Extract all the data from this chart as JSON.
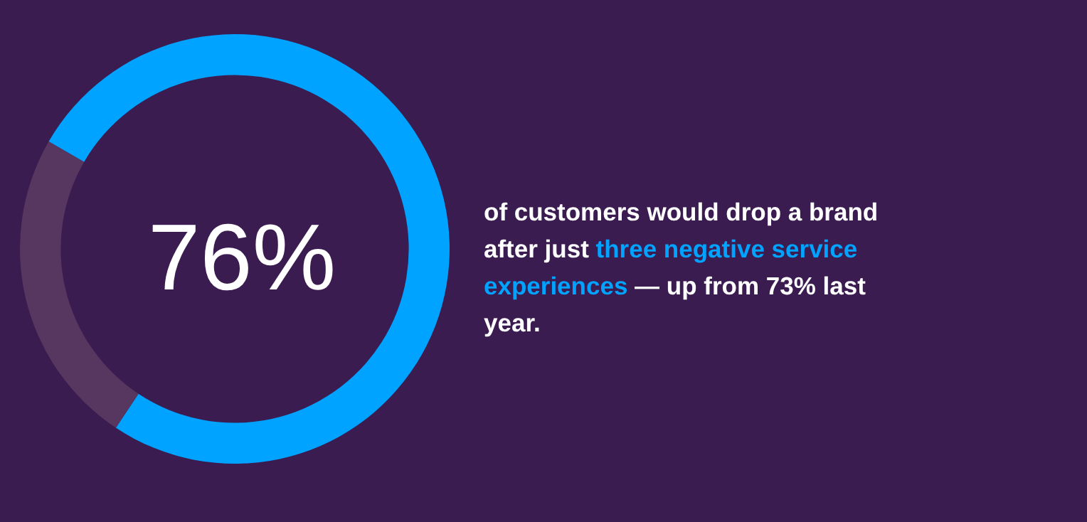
{
  "chart_data": {
    "type": "donut",
    "categories": [
      null,
      null
    ],
    "values": [
      76,
      24
    ],
    "colors": [
      "#00a3ff",
      "#57365f"
    ],
    "value_labels": [
      "76%",
      null
    ],
    "annotations": [
      "of customers would drop a brand after just ",
      "three negative service experiences",
      " — up from 73% last year."
    ]
  }
}
